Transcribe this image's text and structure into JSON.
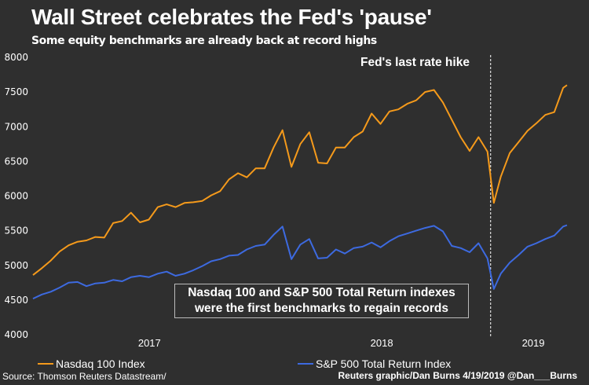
{
  "title": "Wall Street celebrates the Fed's 'pause'",
  "subtitle": "Some equity benchmarks are already back at record highs",
  "annotation_line_label": "Fed's last rate hike",
  "note_lines": [
    "Nasdaq 100 and S&P 500 Total Return indexes",
    "were the first benchmarks to regain records"
  ],
  "source": "Source: Thomson Reuters Datastream/",
  "credit": "Reuters graphic/Dan Burns 4/19/2019 @Dan___Burns",
  "colors": {
    "background": "#2f2f2f",
    "nasdaq": "#f59a1b",
    "sp500": "#3d6ae0",
    "text": "#ffffff"
  },
  "chart_data": {
    "type": "line",
    "title": "Wall Street celebrates the Fed's 'pause'",
    "subtitle": "Some equity benchmarks are already back at record highs",
    "xlabel": "",
    "ylabel": "",
    "ylim": [
      4000,
      8000
    ],
    "yticks": [
      4000,
      4500,
      5000,
      5500,
      6000,
      6500,
      7000,
      7500,
      8000
    ],
    "xtick_labels": [
      "2017",
      "2018",
      "2019"
    ],
    "x_range": [
      "2016-12-30",
      "2019-04-18"
    ],
    "grid": false,
    "legend_position": "bottom",
    "vline": {
      "date": "2018-12-19",
      "label": "Fed's last rate hike",
      "style": "dashed"
    },
    "series": [
      {
        "name": "Nasdaq 100 Index",
        "color": "#f59a1b",
        "x": [
          "2016-12-30",
          "2017-01-13",
          "2017-01-27",
          "2017-02-10",
          "2017-02-24",
          "2017-03-10",
          "2017-03-24",
          "2017-04-07",
          "2017-04-21",
          "2017-05-05",
          "2017-05-19",
          "2017-06-02",
          "2017-06-16",
          "2017-06-30",
          "2017-07-14",
          "2017-07-28",
          "2017-08-11",
          "2017-08-25",
          "2017-09-08",
          "2017-09-22",
          "2017-10-06",
          "2017-10-20",
          "2017-11-03",
          "2017-11-17",
          "2017-12-01",
          "2017-12-15",
          "2017-12-29",
          "2018-01-12",
          "2018-01-26",
          "2018-02-09",
          "2018-02-23",
          "2018-03-09",
          "2018-03-23",
          "2018-04-06",
          "2018-04-20",
          "2018-05-04",
          "2018-05-18",
          "2018-06-01",
          "2018-06-15",
          "2018-06-29",
          "2018-07-13",
          "2018-07-27",
          "2018-08-10",
          "2018-08-24",
          "2018-09-07",
          "2018-09-21",
          "2018-10-05",
          "2018-10-19",
          "2018-11-02",
          "2018-11-16",
          "2018-11-30",
          "2018-12-14",
          "2018-12-24",
          "2019-01-04",
          "2019-01-18",
          "2019-02-01",
          "2019-02-15",
          "2019-03-01",
          "2019-03-15",
          "2019-03-29",
          "2019-04-12",
          "2019-04-18"
        ],
        "values": [
          4860,
          4960,
          5070,
          5200,
          5290,
          5340,
          5360,
          5410,
          5400,
          5610,
          5640,
          5760,
          5620,
          5660,
          5840,
          5880,
          5840,
          5900,
          5910,
          5930,
          6010,
          6070,
          6240,
          6330,
          6270,
          6400,
          6400,
          6700,
          6950,
          6420,
          6750,
          6920,
          6480,
          6470,
          6700,
          6700,
          6850,
          6930,
          7190,
          7040,
          7220,
          7250,
          7330,
          7380,
          7500,
          7530,
          7350,
          7100,
          6850,
          6650,
          6850,
          6640,
          5900,
          6280,
          6620,
          6780,
          6940,
          7050,
          7170,
          7210,
          7560,
          7600
        ]
      },
      {
        "name": "S&P 500 Total Return Index",
        "color": "#3d6ae0",
        "x": [
          "2016-12-30",
          "2017-01-13",
          "2017-01-27",
          "2017-02-10",
          "2017-02-24",
          "2017-03-10",
          "2017-03-24",
          "2017-04-07",
          "2017-04-21",
          "2017-05-05",
          "2017-05-19",
          "2017-06-02",
          "2017-06-16",
          "2017-06-30",
          "2017-07-14",
          "2017-07-28",
          "2017-08-11",
          "2017-08-25",
          "2017-09-08",
          "2017-09-22",
          "2017-10-06",
          "2017-10-20",
          "2017-11-03",
          "2017-11-17",
          "2017-12-01",
          "2017-12-15",
          "2017-12-29",
          "2018-01-12",
          "2018-01-26",
          "2018-02-09",
          "2018-02-23",
          "2018-03-09",
          "2018-03-23",
          "2018-04-06",
          "2018-04-20",
          "2018-05-04",
          "2018-05-18",
          "2018-06-01",
          "2018-06-15",
          "2018-06-29",
          "2018-07-13",
          "2018-07-27",
          "2018-08-10",
          "2018-08-24",
          "2018-09-07",
          "2018-09-21",
          "2018-10-05",
          "2018-10-19",
          "2018-11-02",
          "2018-11-16",
          "2018-11-30",
          "2018-12-14",
          "2018-12-24",
          "2019-01-04",
          "2019-01-18",
          "2019-02-01",
          "2019-02-15",
          "2019-03-01",
          "2019-03-15",
          "2019-03-29",
          "2019-04-12",
          "2019-04-18"
        ],
        "values": [
          4520,
          4580,
          4620,
          4680,
          4750,
          4760,
          4700,
          4740,
          4750,
          4790,
          4770,
          4830,
          4850,
          4830,
          4880,
          4910,
          4850,
          4880,
          4930,
          4990,
          5060,
          5090,
          5140,
          5150,
          5230,
          5280,
          5300,
          5440,
          5560,
          5090,
          5300,
          5380,
          5100,
          5110,
          5230,
          5170,
          5250,
          5270,
          5330,
          5260,
          5350,
          5420,
          5460,
          5500,
          5540,
          5570,
          5490,
          5280,
          5250,
          5190,
          5320,
          5100,
          4660,
          4880,
          5040,
          5150,
          5270,
          5320,
          5380,
          5430,
          5560,
          5580
        ]
      }
    ]
  }
}
